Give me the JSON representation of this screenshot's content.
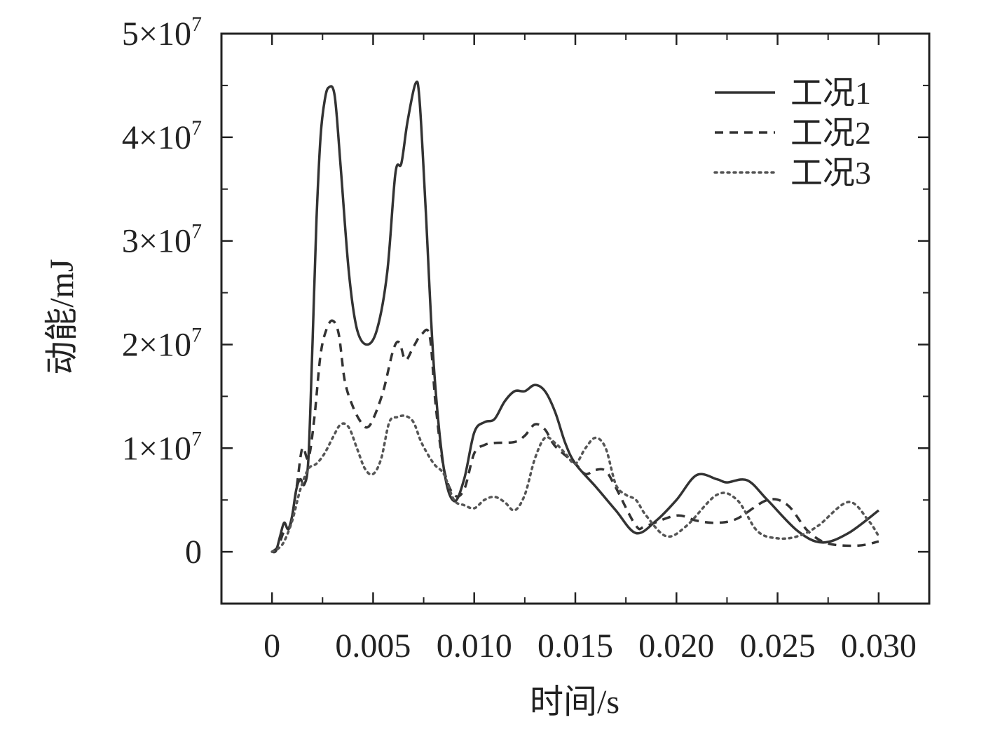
{
  "chart_data": {
    "type": "line",
    "title": "",
    "xlabel": "时间/s",
    "ylabel": "动能/mJ",
    "xlim": [
      -0.0025,
      0.0325
    ],
    "ylim": [
      -5000000,
      50000000
    ],
    "grid": false,
    "legend_position": "top-right",
    "x_ticks": [
      {
        "value": 0,
        "label": "0"
      },
      {
        "value": 0.005,
        "label": "0.005"
      },
      {
        "value": 0.01,
        "label": "0.010"
      },
      {
        "value": 0.015,
        "label": "0.015"
      },
      {
        "value": 0.02,
        "label": "0.020"
      },
      {
        "value": 0.025,
        "label": "0.025"
      },
      {
        "value": 0.03,
        "label": "0.030"
      }
    ],
    "y_ticks": [
      {
        "value": 0,
        "mantissa": "0",
        "exp": ""
      },
      {
        "value": 10000000,
        "mantissa": "1×10",
        "exp": "7"
      },
      {
        "value": 20000000,
        "mantissa": "2×10",
        "exp": "7"
      },
      {
        "value": 30000000,
        "mantissa": "3×10",
        "exp": "7"
      },
      {
        "value": 40000000,
        "mantissa": "4×10",
        "exp": "7"
      },
      {
        "value": 50000000,
        "mantissa": "5×10",
        "exp": "7"
      }
    ],
    "series": [
      {
        "name": "工况1",
        "style": "solid",
        "color": "#333333",
        "points": [
          [
            0,
            0
          ],
          [
            0.0002,
            100000
          ],
          [
            0.0004,
            1500000
          ],
          [
            0.0006,
            2800000
          ],
          [
            0.0008,
            2200000
          ],
          [
            0.001,
            3500000
          ],
          [
            0.0012,
            6000000
          ],
          [
            0.0014,
            7000000
          ],
          [
            0.0016,
            6500000
          ],
          [
            0.0018,
            9000000
          ],
          [
            0.002,
            20000000
          ],
          [
            0.0022,
            32000000
          ],
          [
            0.0024,
            40000000
          ],
          [
            0.0026,
            43500000
          ],
          [
            0.0028,
            44800000
          ],
          [
            0.0031,
            44000000
          ],
          [
            0.0034,
            37000000
          ],
          [
            0.0038,
            27000000
          ],
          [
            0.0042,
            21500000
          ],
          [
            0.0047,
            20000000
          ],
          [
            0.0052,
            21500000
          ],
          [
            0.0057,
            27000000
          ],
          [
            0.0061,
            36500000
          ],
          [
            0.0064,
            37500000
          ],
          [
            0.0067,
            41500000
          ],
          [
            0.0071,
            45200000
          ],
          [
            0.0073,
            43500000
          ],
          [
            0.0076,
            33000000
          ],
          [
            0.008,
            18000000
          ],
          [
            0.0085,
            8000000
          ],
          [
            0.009,
            4900000
          ],
          [
            0.0095,
            7000000
          ],
          [
            0.01,
            11500000
          ],
          [
            0.0105,
            12500000
          ],
          [
            0.011,
            12800000
          ],
          [
            0.0115,
            14500000
          ],
          [
            0.012,
            15500000
          ],
          [
            0.0125,
            15500000
          ],
          [
            0.013,
            16100000
          ],
          [
            0.0135,
            15500000
          ],
          [
            0.014,
            13500000
          ],
          [
            0.0145,
            10500000
          ],
          [
            0.015,
            8500000
          ],
          [
            0.016,
            6300000
          ],
          [
            0.017,
            4000000
          ],
          [
            0.018,
            1800000
          ],
          [
            0.019,
            3000000
          ],
          [
            0.02,
            5000000
          ],
          [
            0.021,
            7400000
          ],
          [
            0.022,
            7000000
          ],
          [
            0.0225,
            6700000
          ],
          [
            0.0235,
            6900000
          ],
          [
            0.0245,
            5000000
          ],
          [
            0.026,
            2000000
          ],
          [
            0.0272,
            900000
          ],
          [
            0.0285,
            1800000
          ],
          [
            0.03,
            4000000
          ]
        ]
      },
      {
        "name": "工况2",
        "style": "dashed",
        "color": "#333333",
        "points": [
          [
            0,
            0
          ],
          [
            0.0003,
            500000
          ],
          [
            0.0006,
            2000000
          ],
          [
            0.0009,
            2500000
          ],
          [
            0.0012,
            6000000
          ],
          [
            0.0015,
            10000000
          ],
          [
            0.0018,
            9000000
          ],
          [
            0.0021,
            13000000
          ],
          [
            0.0024,
            19000000
          ],
          [
            0.0027,
            21500000
          ],
          [
            0.003,
            22300000
          ],
          [
            0.0033,
            21000000
          ],
          [
            0.0036,
            16500000
          ],
          [
            0.004,
            14000000
          ],
          [
            0.0044,
            12500000
          ],
          [
            0.0047,
            12000000
          ],
          [
            0.005,
            12800000
          ],
          [
            0.0055,
            15500000
          ],
          [
            0.006,
            19500000
          ],
          [
            0.0063,
            20200000
          ],
          [
            0.0066,
            18500000
          ],
          [
            0.007,
            19800000
          ],
          [
            0.0074,
            21000000
          ],
          [
            0.0078,
            20800000
          ],
          [
            0.0081,
            14000000
          ],
          [
            0.0085,
            8000000
          ],
          [
            0.009,
            5500000
          ],
          [
            0.0095,
            6000000
          ],
          [
            0.01,
            9500000
          ],
          [
            0.0105,
            10300000
          ],
          [
            0.011,
            10500000
          ],
          [
            0.012,
            10600000
          ],
          [
            0.0125,
            11200000
          ],
          [
            0.013,
            12300000
          ],
          [
            0.0135,
            11800000
          ],
          [
            0.014,
            10200000
          ],
          [
            0.015,
            8500000
          ],
          [
            0.0155,
            7500000
          ],
          [
            0.016,
            7900000
          ],
          [
            0.0165,
            7800000
          ],
          [
            0.017,
            6200000
          ],
          [
            0.018,
            2500000
          ],
          [
            0.0185,
            2500000
          ],
          [
            0.02,
            3500000
          ],
          [
            0.021,
            3000000
          ],
          [
            0.022,
            2800000
          ],
          [
            0.023,
            3200000
          ],
          [
            0.0245,
            5000000
          ],
          [
            0.0255,
            4500000
          ],
          [
            0.0265,
            2000000
          ],
          [
            0.0275,
            800000
          ],
          [
            0.029,
            600000
          ],
          [
            0.03,
            1000000
          ]
        ]
      },
      {
        "name": "工况3",
        "style": "dotted",
        "color": "#555555",
        "points": [
          [
            0,
            0
          ],
          [
            0.0003,
            300000
          ],
          [
            0.0006,
            1000000
          ],
          [
            0.001,
            3000000
          ],
          [
            0.0014,
            6000000
          ],
          [
            0.0018,
            8000000
          ],
          [
            0.0022,
            8500000
          ],
          [
            0.0026,
            9500000
          ],
          [
            0.003,
            11000000
          ],
          [
            0.0034,
            12300000
          ],
          [
            0.0038,
            12000000
          ],
          [
            0.0042,
            10000000
          ],
          [
            0.0046,
            8000000
          ],
          [
            0.005,
            7500000
          ],
          [
            0.0054,
            9000000
          ],
          [
            0.0058,
            12500000
          ],
          [
            0.0062,
            13000000
          ],
          [
            0.0066,
            13100000
          ],
          [
            0.007,
            12500000
          ],
          [
            0.0074,
            10500000
          ],
          [
            0.008,
            8500000
          ],
          [
            0.0085,
            7500000
          ],
          [
            0.009,
            5000000
          ],
          [
            0.0095,
            4500000
          ],
          [
            0.01,
            4200000
          ],
          [
            0.0105,
            5000000
          ],
          [
            0.011,
            5300000
          ],
          [
            0.0115,
            4800000
          ],
          [
            0.012,
            4000000
          ],
          [
            0.0125,
            5500000
          ],
          [
            0.013,
            9000000
          ],
          [
            0.0135,
            11000000
          ],
          [
            0.014,
            10500000
          ],
          [
            0.0145,
            9500000
          ],
          [
            0.015,
            8500000
          ],
          [
            0.0155,
            10000000
          ],
          [
            0.016,
            11000000
          ],
          [
            0.0165,
            10000000
          ],
          [
            0.017,
            6500000
          ],
          [
            0.0175,
            5500000
          ],
          [
            0.018,
            5000000
          ],
          [
            0.0185,
            3500000
          ],
          [
            0.0195,
            1500000
          ],
          [
            0.0205,
            2500000
          ],
          [
            0.022,
            5500000
          ],
          [
            0.023,
            5000000
          ],
          [
            0.024,
            2000000
          ],
          [
            0.025,
            1300000
          ],
          [
            0.026,
            1500000
          ],
          [
            0.027,
            2500000
          ],
          [
            0.0285,
            4800000
          ],
          [
            0.0295,
            3000000
          ],
          [
            0.03,
            1500000
          ]
        ]
      }
    ]
  }
}
